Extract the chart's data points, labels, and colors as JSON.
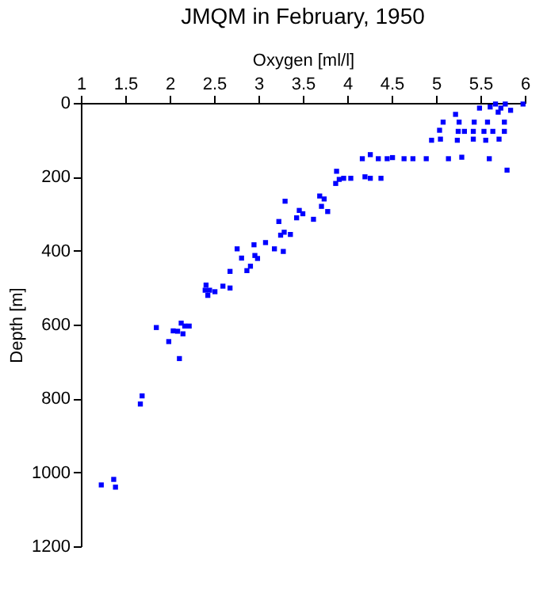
{
  "chart_data": {
    "type": "scatter",
    "title": "JMQM in February, 1950",
    "xlabel": "Oxygen [ml/l]",
    "ylabel": "Depth [m]",
    "xlim": [
      1,
      6
    ],
    "xticks": [
      1,
      1.5,
      2,
      2.5,
      3,
      3.5,
      4,
      4.5,
      5,
      5.5,
      6
    ],
    "ylim": [
      1200,
      0
    ],
    "yticks": [
      0,
      200,
      400,
      600,
      800,
      1000,
      1200
    ],
    "grid": false,
    "marker": "square",
    "series": [
      {
        "color": "#0000ff",
        "x": [
          5.67,
          5.78,
          5.98,
          5.49,
          5.61,
          5.73,
          5.7,
          5.84,
          5.22,
          5.08,
          5.26,
          5.43,
          5.58,
          5.77,
          5.04,
          5.25,
          5.32,
          5.42,
          5.54,
          5.64,
          5.77,
          4.95,
          5.05,
          5.24,
          5.42,
          5.56,
          5.71,
          4.17,
          4.26,
          4.35,
          4.45,
          4.51,
          4.64,
          4.74,
          4.89,
          5.14,
          5.29,
          5.6,
          5.8,
          3.88,
          3.87,
          3.91,
          3.96,
          4.04,
          4.2,
          4.26,
          4.38,
          3.3,
          3.69,
          3.74,
          3.71,
          3.78,
          3.46,
          3.5,
          3.43,
          3.62,
          3.23,
          3.29,
          3.36,
          3.25,
          2.76,
          2.95,
          3.08,
          3.18,
          3.28,
          2.81,
          2.96,
          2.99,
          2.91,
          2.87,
          2.68,
          2.41,
          2.4,
          2.45,
          2.51,
          2.43,
          2.6,
          2.68,
          1.85,
          2.04,
          2.09,
          2.15,
          2.17,
          2.22,
          2.13,
          1.99,
          2.11,
          1.69,
          1.67,
          1.23,
          1.37,
          1.39
        ],
        "values": [
          3,
          3,
          3,
          14,
          11,
          14,
          25,
          20,
          31,
          52,
          52,
          52,
          52,
          52,
          74,
          77,
          77,
          77,
          77,
          77,
          77,
          101,
          98,
          101,
          98,
          101,
          98,
          151,
          140,
          151,
          151,
          148,
          151,
          151,
          151,
          151,
          147,
          151,
          182,
          185,
          218,
          207,
          204,
          204,
          200,
          204,
          204,
          266,
          252,
          260,
          280,
          294,
          291,
          300,
          311,
          315,
          321,
          350,
          356,
          358,
          395,
          384,
          378,
          395,
          402,
          420,
          413,
          421,
          442,
          454,
          456,
          493,
          507,
          507,
          511,
          521,
          496,
          501,
          608,
          617,
          618,
          625,
          604,
          604,
          596,
          646,
          692,
          793,
          815,
          1034,
          1019,
          1040
        ]
      }
    ]
  }
}
